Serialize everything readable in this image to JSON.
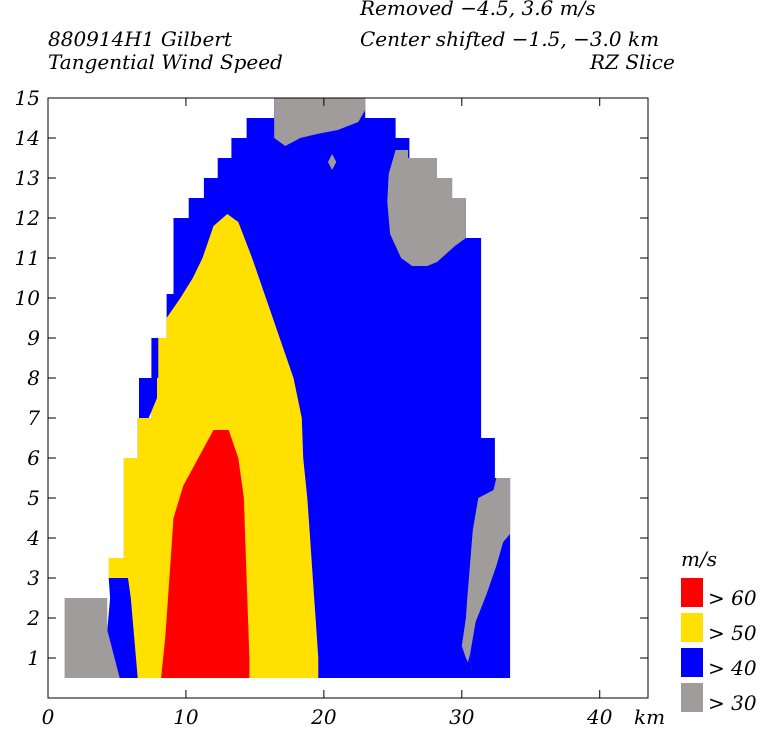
{
  "header": {
    "storm_id": "880914H1 Gilbert",
    "field": "Tangential Wind Speed",
    "removed": "Removed −4.5, 3.6 m/s",
    "center_shift": "Center shifted −1.5, −3.0 km",
    "slice": "RZ Slice"
  },
  "chart_data": {
    "type": "heatmap",
    "title": "Tangential Wind Speed",
    "xlabel": "km",
    "ylabel": "",
    "xlim": [
      0,
      43.5
    ],
    "ylim": [
      0,
      15
    ],
    "x_ticks": [
      0,
      10,
      20,
      30,
      40
    ],
    "y_ticks": [
      1,
      2,
      3,
      4,
      5,
      6,
      7,
      8,
      9,
      10,
      11,
      12,
      13,
      14,
      15
    ],
    "units": "m/s",
    "colors": {
      "gt30": "#a09c9c",
      "gt40": "#0000ff",
      "gt50": "#ffe000",
      "gt60": "#ff0000"
    },
    "legend": [
      {
        "label": "> 60",
        "color": "#ff0000"
      },
      {
        "label": "> 50",
        "color": "#ffe000"
      },
      {
        "label": "> 40",
        "color": "#0000ff"
      },
      {
        "label": "> 30",
        "color": "#a09c9c"
      }
    ],
    "regions": [
      {
        "name": "gray-lower-left",
        "level": "gt30",
        "points": [
          [
            1.2,
            0.5
          ],
          [
            1.2,
            2.5
          ],
          [
            4.3,
            2.5
          ],
          [
            4.3,
            1.7
          ],
          [
            5.2,
            0.9
          ],
          [
            5.2,
            0.5
          ]
        ]
      },
      {
        "name": "blue-envelope",
        "level": "gt40",
        "points": [
          [
            5.2,
            0.5
          ],
          [
            4.3,
            1.7
          ],
          [
            4.5,
            2.5
          ],
          [
            4.4,
            3.0
          ],
          [
            5.5,
            3.0
          ],
          [
            5.5,
            6.0
          ],
          [
            6.5,
            6.0
          ],
          [
            6.5,
            7.0
          ],
          [
            7.5,
            7.0
          ],
          [
            7.5,
            9.0
          ],
          [
            8.6,
            9.0
          ],
          [
            8.6,
            10.1
          ],
          [
            9.1,
            10.1
          ],
          [
            9.1,
            12.0
          ],
          [
            10.2,
            12.0
          ],
          [
            10.2,
            12.5
          ],
          [
            11.3,
            12.5
          ],
          [
            11.3,
            13.0
          ],
          [
            12.3,
            13.0
          ],
          [
            12.3,
            13.5
          ],
          [
            13.3,
            13.5
          ],
          [
            13.3,
            14.0
          ],
          [
            14.4,
            14.0
          ],
          [
            14.4,
            14.5
          ],
          [
            16.4,
            14.5
          ],
          [
            16.4,
            15.0
          ],
          [
            23.0,
            15.0
          ],
          [
            23.0,
            14.5
          ],
          [
            25.2,
            14.5
          ],
          [
            25.2,
            14.0
          ],
          [
            26.2,
            14.0
          ],
          [
            26.2,
            13.5
          ],
          [
            28.2,
            13.5
          ],
          [
            28.2,
            13.0
          ],
          [
            29.3,
            13.0
          ],
          [
            29.3,
            12.5
          ],
          [
            30.3,
            12.5
          ],
          [
            30.3,
            11.5
          ],
          [
            31.4,
            11.5
          ],
          [
            31.4,
            6.5
          ],
          [
            32.4,
            6.5
          ],
          [
            32.4,
            5.5
          ],
          [
            33.5,
            5.5
          ],
          [
            33.5,
            0.5
          ]
        ]
      },
      {
        "name": "yellow-core",
        "level": "gt50",
        "points": [
          [
            6.5,
            0.5
          ],
          [
            6.0,
            2.5
          ],
          [
            5.8,
            3.0
          ],
          [
            4.4,
            3.0
          ],
          [
            4.4,
            3.5
          ],
          [
            5.5,
            3.5
          ],
          [
            5.5,
            6.0
          ],
          [
            6.5,
            6.0
          ],
          [
            6.5,
            7.0
          ],
          [
            7.5,
            7.0
          ],
          [
            7.5,
            8.0
          ],
          [
            8.0,
            8.0
          ],
          [
            8.0,
            9.0
          ],
          [
            8.6,
            9.0
          ],
          [
            8.6,
            9.5
          ],
          [
            9.6,
            10.0
          ],
          [
            10.5,
            10.5
          ],
          [
            11.2,
            11.0
          ],
          [
            12.0,
            11.8
          ],
          [
            13.0,
            12.1
          ],
          [
            13.8,
            11.9
          ],
          [
            14.8,
            11.0
          ],
          [
            15.8,
            10.0
          ],
          [
            16.8,
            9.0
          ],
          [
            17.8,
            8.0
          ],
          [
            18.4,
            7.0
          ],
          [
            18.5,
            6.0
          ],
          [
            18.8,
            5.0
          ],
          [
            19.0,
            4.0
          ],
          [
            19.2,
            3.0
          ],
          [
            19.4,
            2.0
          ],
          [
            19.6,
            1.0
          ],
          [
            19.6,
            0.5
          ]
        ]
      },
      {
        "name": "blue-notch-left",
        "level": "gt40",
        "points": [
          [
            6.6,
            8.0
          ],
          [
            6.6,
            7.0
          ],
          [
            7.3,
            7.0
          ],
          [
            7.9,
            7.5
          ],
          [
            7.9,
            8.0
          ]
        ]
      },
      {
        "name": "red-core",
        "level": "gt60",
        "points": [
          [
            8.2,
            0.5
          ],
          [
            8.5,
            1.5
          ],
          [
            8.8,
            3.0
          ],
          [
            9.1,
            4.5
          ],
          [
            9.8,
            5.3
          ],
          [
            10.9,
            6.0
          ],
          [
            12.0,
            6.7
          ],
          [
            13.1,
            6.7
          ],
          [
            13.8,
            6.0
          ],
          [
            14.2,
            5.0
          ],
          [
            14.3,
            4.0
          ],
          [
            14.4,
            3.0
          ],
          [
            14.5,
            2.0
          ],
          [
            14.6,
            1.0
          ],
          [
            14.6,
            0.5
          ]
        ]
      },
      {
        "name": "gray-top",
        "level": "gt30",
        "points": [
          [
            16.4,
            15.0
          ],
          [
            16.4,
            14.0
          ],
          [
            17.2,
            13.8
          ],
          [
            18.3,
            14.0
          ],
          [
            19.5,
            14.1
          ],
          [
            21.0,
            14.2
          ],
          [
            22.5,
            14.4
          ],
          [
            23.0,
            14.7
          ],
          [
            23.0,
            15.0
          ]
        ]
      },
      {
        "name": "gray-upper-right",
        "level": "gt30",
        "points": [
          [
            25.2,
            13.7
          ],
          [
            26.1,
            13.7
          ],
          [
            26.1,
            13.5
          ],
          [
            28.2,
            13.5
          ],
          [
            28.2,
            13.0
          ],
          [
            29.3,
            13.0
          ],
          [
            29.3,
            12.5
          ],
          [
            30.3,
            12.5
          ],
          [
            30.3,
            11.5
          ],
          [
            29.5,
            11.3
          ],
          [
            28.2,
            10.9
          ],
          [
            27.5,
            10.8
          ],
          [
            26.4,
            10.8
          ],
          [
            25.6,
            11.0
          ],
          [
            24.8,
            11.6
          ],
          [
            24.6,
            12.4
          ],
          [
            24.7,
            13.1
          ]
        ]
      },
      {
        "name": "gray-diamond",
        "level": "gt30",
        "points": [
          [
            20.6,
            13.6
          ],
          [
            20.9,
            13.4
          ],
          [
            20.6,
            13.2
          ],
          [
            20.3,
            13.4
          ]
        ]
      },
      {
        "name": "gray-right",
        "level": "gt30",
        "points": [
          [
            30.4,
            2.5
          ],
          [
            30.8,
            4.2
          ],
          [
            31.2,
            5.0
          ],
          [
            32.3,
            5.2
          ],
          [
            32.5,
            5.5
          ],
          [
            33.5,
            5.5
          ],
          [
            33.5,
            4.1
          ],
          [
            33.0,
            3.9
          ],
          [
            32.5,
            3.3
          ],
          [
            31.8,
            2.6
          ],
          [
            31.0,
            1.9
          ],
          [
            30.6,
            1.1
          ],
          [
            30.7,
            0.7
          ],
          [
            30.3,
            1.0
          ],
          [
            30.0,
            1.3
          ],
          [
            30.3,
            2.0
          ]
        ]
      },
      {
        "name": "blue-right-fill",
        "level": "gt40",
        "points": [
          [
            30.7,
            0.7
          ],
          [
            30.5,
            0.5
          ],
          [
            30.3,
            0.7
          ],
          [
            30.6,
            1.1
          ]
        ]
      }
    ]
  }
}
